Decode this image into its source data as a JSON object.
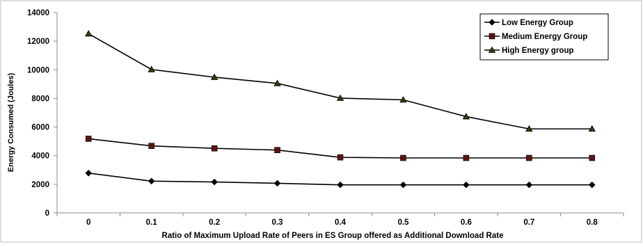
{
  "chart_data": {
    "type": "line",
    "title": "",
    "xlabel": "Ratio of Maximum Upload Rate of Peers in ES Group offered as Additional Download Rate",
    "ylabel": "Energy Consumed (Joules)",
    "x": [
      "0",
      "0.1",
      "0.2",
      "0.3",
      "0.4",
      "0.5",
      "0.6",
      "0.7",
      "0.8"
    ],
    "ylim": [
      0,
      14000
    ],
    "yticks": [
      0,
      2000,
      4000,
      6000,
      8000,
      10000,
      12000,
      14000
    ],
    "grid": false,
    "legend_position": "top-right",
    "series": [
      {
        "name": "Low Energy Group",
        "marker": "diamond",
        "color": "#000000",
        "values": [
          2780,
          2220,
          2160,
          2070,
          1960,
          1960,
          1960,
          1960,
          1960
        ]
      },
      {
        "name": "Medium Energy Group",
        "marker": "square",
        "color": "#5a1414",
        "values": [
          5180,
          4680,
          4510,
          4390,
          3880,
          3840,
          3840,
          3840,
          3840
        ]
      },
      {
        "name": "High Energy group",
        "marker": "triangle",
        "color": "#3a3a0a",
        "values": [
          12520,
          10020,
          9480,
          9050,
          8020,
          7900,
          6730,
          5870,
          5870
        ]
      }
    ]
  }
}
